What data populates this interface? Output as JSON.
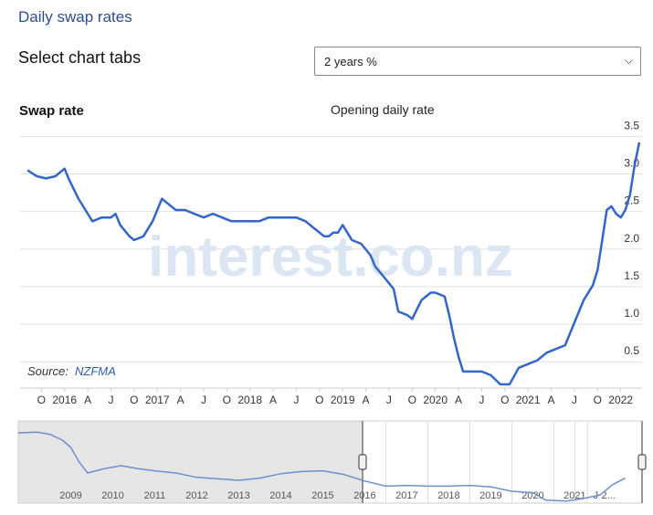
{
  "header": {
    "title": "Daily swap rates"
  },
  "controls": {
    "label": "Select chart tabs",
    "select": "2 years %"
  },
  "chart_data": [
    {
      "type": "line",
      "title": "Swap rate",
      "subtitle": "Opening daily rate",
      "watermark": "interest.co.nz",
      "source_label": "Source:",
      "source": "NZFMA",
      "xlim": [
        2015.52,
        2022.23
      ],
      "xticks": [
        {
          "value": 2015.75,
          "label": "O"
        },
        2016,
        {
          "value": 2016.25,
          "label": "A"
        },
        {
          "value": 2016.5,
          "label": "J"
        },
        {
          "value": 2016.75,
          "label": "O"
        },
        2017,
        {
          "value": 2017.25,
          "label": "A"
        },
        {
          "value": 2017.5,
          "label": "J"
        },
        {
          "value": 2017.75,
          "label": "O"
        },
        2018,
        {
          "value": 2018.25,
          "label": "A"
        },
        {
          "value": 2018.5,
          "label": "J"
        },
        {
          "value": 2018.75,
          "label": "O"
        },
        2019,
        {
          "value": 2019.25,
          "label": "A"
        },
        {
          "value": 2019.5,
          "label": "J"
        },
        {
          "value": 2019.75,
          "label": "O"
        },
        2020,
        {
          "value": 2020.25,
          "label": "A"
        },
        {
          "value": 2020.5,
          "label": "J"
        },
        {
          "value": 2020.75,
          "label": "O"
        },
        2021,
        {
          "value": 2021.25,
          "label": "A"
        },
        {
          "value": 2021.5,
          "label": "J"
        },
        {
          "value": 2021.75,
          "label": "O"
        },
        2022
      ],
      "ylim": [
        0.15,
        3.65
      ],
      "yticks": [
        0.5,
        {
          "value": 1,
          "label": "1.0"
        },
        1.5,
        {
          "value": 2,
          "label": "2.0"
        },
        2.5,
        {
          "value": 3,
          "label": "3.0"
        },
        3.5
      ],
      "grid": true,
      "series": [
        {
          "name": "Swap rate",
          "color": "#3366cc",
          "x": [
            2015.6,
            2015.7,
            2015.8,
            2015.9,
            2016.0,
            2016.05,
            2016.15,
            2016.25,
            2016.3,
            2016.4,
            2016.5,
            2016.55,
            2016.6,
            2016.7,
            2016.75,
            2016.85,
            2016.95,
            2017.0,
            2017.05,
            2017.1,
            2017.2,
            2017.3,
            2017.4,
            2017.5,
            2017.6,
            2017.7,
            2017.8,
            2017.9,
            2018.0,
            2018.1,
            2018.2,
            2018.3,
            2018.4,
            2018.5,
            2018.6,
            2018.7,
            2018.8,
            2018.85,
            2018.9,
            2018.95,
            2019.0,
            2019.05,
            2019.1,
            2019.2,
            2019.3,
            2019.35,
            2019.45,
            2019.55,
            2019.6,
            2019.7,
            2019.75,
            2019.85,
            2019.95,
            2020.0,
            2020.1,
            2020.15,
            2020.2,
            2020.25,
            2020.3,
            2020.4,
            2020.5,
            2020.6,
            2020.7,
            2020.8,
            2020.9,
            2021.0,
            2021.1,
            2021.2,
            2021.3,
            2021.4,
            2021.5,
            2021.6,
            2021.7,
            2021.75,
            2021.8,
            2021.85,
            2021.9,
            2021.95,
            2022.0,
            2022.05,
            2022.1,
            2022.15,
            2022.2
          ],
          "values": [
            3.05,
            2.97,
            2.94,
            2.97,
            3.07,
            2.92,
            2.67,
            2.47,
            2.37,
            2.42,
            2.42,
            2.47,
            2.32,
            2.17,
            2.12,
            2.17,
            2.37,
            2.52,
            2.67,
            2.62,
            2.52,
            2.52,
            2.47,
            2.42,
            2.47,
            2.42,
            2.37,
            2.37,
            2.37,
            2.37,
            2.42,
            2.42,
            2.42,
            2.42,
            2.37,
            2.27,
            2.17,
            2.17,
            2.22,
            2.22,
            2.32,
            2.22,
            2.12,
            2.07,
            1.92,
            1.77,
            1.62,
            1.47,
            1.17,
            1.12,
            1.07,
            1.32,
            1.42,
            1.42,
            1.37,
            1.12,
            0.82,
            0.57,
            0.37,
            0.37,
            0.37,
            0.32,
            0.2,
            0.2,
            0.42,
            0.47,
            0.52,
            0.62,
            0.67,
            0.72,
            1.02,
            1.32,
            1.52,
            1.72,
            2.12,
            2.52,
            2.57,
            2.47,
            2.42,
            2.52,
            2.72,
            3.12,
            3.42
          ]
        }
      ]
    },
    {
      "type": "line",
      "xlim": [
        2007.75,
        2022.6
      ],
      "xticks": [
        2009,
        2010,
        2011,
        2012,
        2013,
        2014,
        2015,
        2016,
        2017,
        2018,
        2019,
        2020,
        2021,
        {
          "value": 2021.5,
          "label": "J"
        },
        {
          "value": 2021.8,
          "label": "2..."
        }
      ],
      "ylim": [
        0,
        11
      ],
      "series": [
        {
          "name": "Swap rate",
          "color": "#6e8fd1",
          "x": [
            2007.75,
            2008.2,
            2008.5,
            2008.8,
            2009.0,
            2009.2,
            2009.4,
            2009.6,
            2009.8,
            2010.2,
            2010.6,
            2011.0,
            2011.5,
            2012.0,
            2012.5,
            2013.0,
            2013.5,
            2014.0,
            2014.5,
            2015.0,
            2015.5,
            2016.0,
            2016.5,
            2017.0,
            2017.5,
            2018.0,
            2018.5,
            2019.0,
            2019.5,
            2020.0,
            2020.3,
            2020.8,
            2021.2,
            2021.6,
            2021.9,
            2022.2
          ],
          "values": [
            9.5,
            9.6,
            9.3,
            8.5,
            7.5,
            5.5,
            4.0,
            4.3,
            4.6,
            5.0,
            4.6,
            4.3,
            4.0,
            3.4,
            3.2,
            3.0,
            3.3,
            3.9,
            4.2,
            4.3,
            3.8,
            2.9,
            2.2,
            2.3,
            2.2,
            2.2,
            2.3,
            2.1,
            1.5,
            1.3,
            0.3,
            0.15,
            0.5,
            1.0,
            2.4,
            3.3
          ]
        }
      ]
    }
  ]
}
